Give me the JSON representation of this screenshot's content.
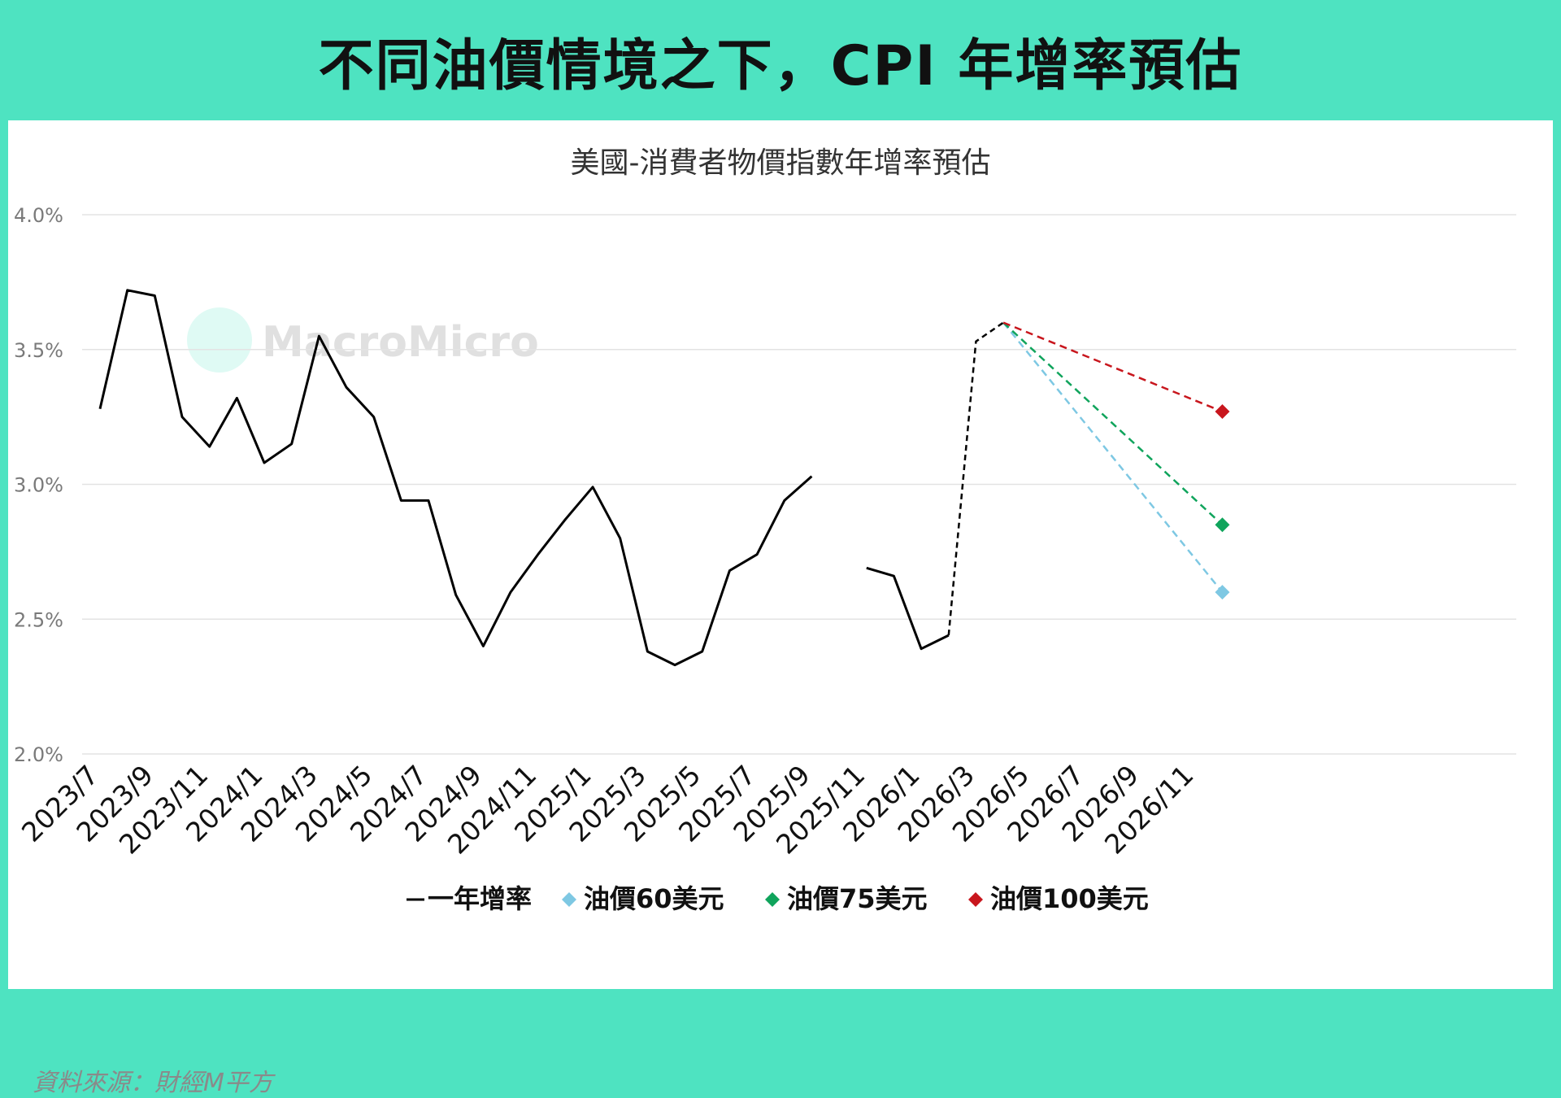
{
  "banner": {
    "title": "不同油價情境之下，CPI 年增率預估"
  },
  "source": "資料來源：財經M平方",
  "watermark": "MacroMicro",
  "colors": {
    "banner_bg": "#4ee3c1",
    "actual": "#000000",
    "oil60": "#7ec8e3",
    "oil75": "#10a45c",
    "oil100": "#c8161d",
    "grid": "#e3e3e3"
  },
  "chart_data": {
    "type": "line",
    "title": "美國-消費者物價指數年增率預估",
    "xlabel": "",
    "ylabel": "",
    "ylim": [
      0.02,
      0.04
    ],
    "y_ticks": [
      "4.0%",
      "3.5%",
      "3.0%",
      "2.5%",
      "2.0%"
    ],
    "y_tick_values": [
      0.04,
      0.035,
      0.03,
      0.025,
      0.02
    ],
    "grid": true,
    "legend_position": "bottom-center",
    "x_categories": [
      "2023/7",
      "2023/8",
      "2023/9",
      "2023/10",
      "2023/11",
      "2023/12",
      "2024/1",
      "2024/2",
      "2024/3",
      "2024/4",
      "2024/5",
      "2024/6",
      "2024/7",
      "2024/8",
      "2024/9",
      "2024/10",
      "2024/11",
      "2024/12",
      "2025/1",
      "2025/2",
      "2025/3",
      "2025/4",
      "2025/5",
      "2025/6",
      "2025/7",
      "2025/8",
      "2025/9",
      "2025/10",
      "2025/11",
      "2025/12",
      "2026/1",
      "2026/2",
      "2026/3",
      "2026/4",
      "2026/5",
      "2026/6",
      "2026/7",
      "2026/8",
      "2026/9",
      "2026/10",
      "2026/11",
      "2026/12"
    ],
    "x_tick_labels": [
      "2023/7",
      "2023/9",
      "2023/11",
      "2024/1",
      "2024/3",
      "2024/5",
      "2024/7",
      "2024/9",
      "2024/11",
      "2025/1",
      "2025/3",
      "2025/5",
      "2025/7",
      "2025/9",
      "2025/11",
      "2026/1",
      "2026/3",
      "2026/5",
      "2026/7",
      "2026/9",
      "2026/11"
    ],
    "series": [
      {
        "name": "一年增率",
        "segments": [
          {
            "x": [
              "2023/7",
              "2023/8",
              "2023/9",
              "2023/10",
              "2023/11",
              "2023/12",
              "2024/1",
              "2024/2",
              "2024/3",
              "2024/4",
              "2024/5",
              "2024/6",
              "2024/7",
              "2024/8",
              "2024/9",
              "2024/10",
              "2024/11",
              "2024/12",
              "2025/1",
              "2025/2",
              "2025/3",
              "2025/4",
              "2025/5",
              "2025/6",
              "2025/7",
              "2025/8",
              "2025/9"
            ],
            "values": [
              0.0328,
              0.0372,
              0.037,
              0.0325,
              0.0314,
              0.0332,
              0.0308,
              0.0315,
              0.0355,
              0.0336,
              0.0325,
              0.0294,
              0.0294,
              0.0259,
              0.024,
              0.026,
              0.0274,
              0.0287,
              0.0299,
              0.028,
              0.0238,
              0.0233,
              0.0238,
              0.0268,
              0.0274,
              0.0294,
              0.0303
            ],
            "style": "solid"
          },
          {
            "x": [
              "2025/11",
              "2025/12",
              "2026/1",
              "2026/2"
            ],
            "values": [
              0.0269,
              0.0266,
              0.0239,
              0.0244
            ],
            "style": "solid"
          },
          {
            "x": [
              "2026/2",
              "2026/3",
              "2026/4"
            ],
            "values": [
              0.0244,
              0.0353,
              0.036
            ],
            "style": "dashed"
          }
        ]
      },
      {
        "name": "油價60美元",
        "x": [
          "2026/4",
          "2026/12"
        ],
        "values": [
          0.036,
          0.026
        ],
        "style": "dashed",
        "marker": "diamond"
      },
      {
        "name": "油價75美元",
        "x": [
          "2026/4",
          "2026/12"
        ],
        "values": [
          0.036,
          0.0285
        ],
        "style": "dashed",
        "marker": "diamond"
      },
      {
        "name": "油價100美元",
        "x": [
          "2026/4",
          "2026/12"
        ],
        "values": [
          0.036,
          0.0327
        ],
        "style": "dashed",
        "marker": "diamond"
      }
    ],
    "legend": [
      {
        "label": "一年增率",
        "symbol": "line"
      },
      {
        "label": "油價60美元",
        "symbol": "diamond"
      },
      {
        "label": "油價75美元",
        "symbol": "diamond"
      },
      {
        "label": "油價100美元",
        "symbol": "diamond"
      }
    ]
  }
}
